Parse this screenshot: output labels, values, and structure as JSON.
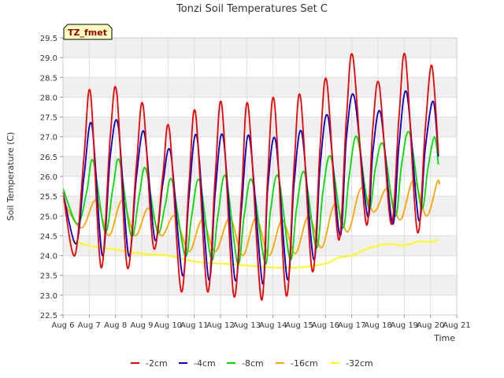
{
  "chart_data": {
    "type": "line",
    "title": "Tonzi Soil Temperatures Set C",
    "xlabel": "Time",
    "ylabel": "Soil Temperature (C)",
    "ylim": [
      22.5,
      29.5
    ],
    "xlim": [
      6,
      21
    ],
    "yticks": [
      "22.5",
      "23.0",
      "23.5",
      "24.0",
      "24.5",
      "25.0",
      "25.5",
      "26.0",
      "26.5",
      "27.0",
      "27.5",
      "28.0",
      "28.5",
      "29.0",
      "29.5"
    ],
    "xticks": [
      {
        "x": 6,
        "label": "Aug 6"
      },
      {
        "x": 7,
        "label": "Aug 7"
      },
      {
        "x": 8,
        "label": "Aug 8"
      },
      {
        "x": 9,
        "label": "Aug 9"
      },
      {
        "x": 10,
        "label": "Aug 10"
      },
      {
        "x": 11,
        "label": "Aug 11"
      },
      {
        "x": 12,
        "label": "Aug 12"
      },
      {
        "x": 13,
        "label": "Aug 13"
      },
      {
        "x": 14,
        "label": "Aug 14"
      },
      {
        "x": 15,
        "label": "Aug 15"
      },
      {
        "x": 16,
        "label": "Aug 16"
      },
      {
        "x": 17,
        "label": "Aug 17"
      },
      {
        "x": 18,
        "label": "Aug 18"
      },
      {
        "x": 19,
        "label": "Aug 19"
      },
      {
        "x": 20,
        "label": "Aug 20"
      },
      {
        "x": 21,
        "label": "Aug 21"
      }
    ],
    "grid": true,
    "badge": "TZ_fmet",
    "legend_position": "bottom",
    "series": [
      {
        "name": "-2cm",
        "color": "#ee0000",
        "x": [
          6.0,
          6.45,
          6.8,
          7.05,
          7.45,
          7.8,
          8.05,
          8.45,
          8.8,
          9.05,
          9.45,
          9.8,
          10.05,
          10.5,
          10.8,
          11.05,
          11.5,
          11.8,
          12.05,
          12.5,
          12.8,
          13.05,
          13.55,
          13.8,
          14.05,
          14.5,
          14.8,
          15.05,
          15.5,
          15.8,
          16.05,
          16.5,
          16.8,
          17.05,
          17.55,
          17.8,
          18.05,
          18.5,
          18.8,
          19.05,
          19.5,
          19.8,
          20.05,
          20.3
        ],
        "y": [
          25.6,
          24.0,
          26.5,
          28.1,
          23.7,
          27.0,
          28.1,
          23.7,
          26.3,
          27.8,
          24.2,
          26.0,
          27.2,
          23.1,
          25.8,
          27.6,
          23.1,
          26.0,
          27.8,
          23.0,
          25.5,
          27.8,
          22.9,
          26.0,
          27.9,
          23.0,
          26.2,
          28.0,
          23.6,
          26.8,
          28.4,
          24.4,
          27.5,
          29.0,
          24.8,
          27.2,
          28.3,
          24.8,
          27.5,
          29.0,
          24.6,
          27.2,
          28.8,
          26.6
        ]
      },
      {
        "name": "-4cm",
        "color": "#0000cc",
        "x": [
          6.0,
          6.5,
          6.8,
          7.1,
          7.5,
          7.8,
          8.1,
          8.5,
          8.8,
          9.1,
          9.5,
          9.8,
          10.1,
          10.55,
          10.8,
          11.1,
          11.55,
          11.8,
          12.1,
          12.55,
          12.8,
          13.1,
          13.6,
          13.8,
          14.1,
          14.55,
          14.8,
          15.1,
          15.55,
          15.8,
          16.1,
          16.55,
          16.8,
          17.1,
          17.6,
          17.8,
          18.1,
          18.55,
          18.8,
          19.1,
          19.55,
          19.8,
          20.1,
          20.3
        ],
        "y": [
          25.6,
          24.3,
          26.0,
          27.3,
          24.0,
          26.5,
          27.3,
          24.0,
          26.0,
          27.1,
          24.4,
          25.8,
          26.6,
          23.5,
          25.5,
          27.0,
          23.4,
          25.6,
          27.0,
          23.4,
          25.2,
          27.0,
          23.3,
          25.7,
          26.9,
          23.4,
          25.8,
          27.1,
          23.9,
          26.3,
          27.5,
          24.5,
          27.0,
          28.0,
          25.0,
          26.6,
          27.6,
          24.8,
          26.8,
          28.1,
          24.9,
          26.7,
          27.9,
          26.5
        ]
      },
      {
        "name": "-8cm",
        "color": "#00dd00",
        "x": [
          6.0,
          6.55,
          6.9,
          7.15,
          7.6,
          7.9,
          8.15,
          8.6,
          8.9,
          9.15,
          9.6,
          9.9,
          10.15,
          10.65,
          10.9,
          11.2,
          11.65,
          11.9,
          12.2,
          12.65,
          12.9,
          13.2,
          13.7,
          13.9,
          14.2,
          14.65,
          14.9,
          15.2,
          15.65,
          15.9,
          16.2,
          16.65,
          16.9,
          17.2,
          17.65,
          17.9,
          18.2,
          18.65,
          18.9,
          19.2,
          19.65,
          19.9,
          20.15,
          20.3
        ],
        "y": [
          25.7,
          24.8,
          25.6,
          26.4,
          24.6,
          25.7,
          26.4,
          24.5,
          25.5,
          26.2,
          24.6,
          25.3,
          25.9,
          24.0,
          25.0,
          25.9,
          23.9,
          25.0,
          26.0,
          23.8,
          25.0,
          25.9,
          23.8,
          25.1,
          26.0,
          23.9,
          25.2,
          26.1,
          24.2,
          25.6,
          26.5,
          24.7,
          26.0,
          27.0,
          25.2,
          26.2,
          26.8,
          25.0,
          26.3,
          27.1,
          25.2,
          26.2,
          27.0,
          26.3
        ]
      },
      {
        "name": "-16cm",
        "color": "#ffa500",
        "x": [
          6.0,
          6.7,
          7.25,
          7.75,
          8.25,
          8.75,
          9.25,
          9.75,
          10.25,
          10.8,
          11.3,
          11.8,
          12.35,
          12.85,
          13.35,
          13.85,
          14.35,
          14.85,
          15.35,
          15.85,
          16.35,
          16.85,
          17.35,
          17.85,
          18.35,
          18.85,
          19.35,
          19.85,
          20.25,
          20.35
        ],
        "y": [
          25.4,
          24.7,
          25.4,
          24.5,
          25.4,
          24.5,
          25.2,
          24.5,
          25.0,
          24.1,
          24.9,
          24.1,
          24.95,
          24.0,
          24.95,
          24.0,
          24.9,
          24.05,
          25.0,
          24.2,
          25.3,
          24.6,
          25.7,
          25.1,
          25.7,
          24.9,
          25.9,
          25.0,
          25.85,
          25.8
        ]
      },
      {
        "name": "-32cm",
        "color": "#ffff00",
        "x": [
          6.3,
          7.0,
          8.0,
          9.0,
          10.0,
          11.0,
          12.0,
          13.0,
          14.0,
          15.0,
          16.0,
          16.5,
          17.0,
          17.5,
          18.0,
          18.5,
          19.0,
          19.5,
          20.0,
          20.3
        ],
        "y": [
          24.4,
          24.25,
          24.15,
          24.05,
          24.0,
          23.85,
          23.8,
          23.75,
          23.7,
          23.7,
          23.8,
          23.95,
          24.0,
          24.15,
          24.25,
          24.3,
          24.25,
          24.35,
          24.35,
          24.4
        ]
      }
    ]
  }
}
